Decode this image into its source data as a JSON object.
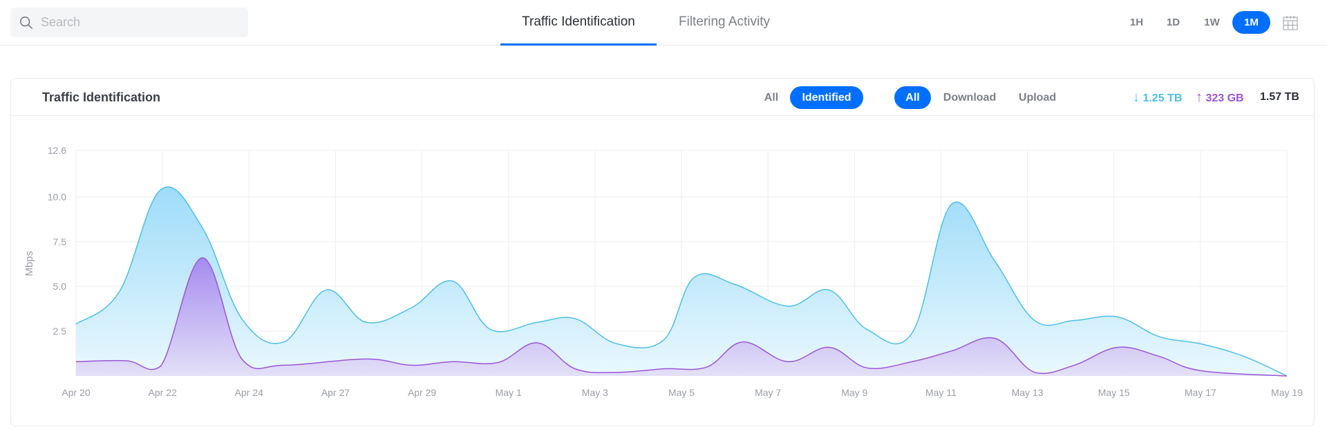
{
  "search": {
    "placeholder": "Search",
    "value": ""
  },
  "tabs": [
    {
      "label": "Traffic Identification",
      "active": true
    },
    {
      "label": "Filtering Activity",
      "active": false
    }
  ],
  "time_ranges": [
    {
      "label": "1H",
      "active": false
    },
    {
      "label": "1D",
      "active": false
    },
    {
      "label": "1W",
      "active": false
    },
    {
      "label": "1M",
      "active": true
    }
  ],
  "calendar_icon": "calendar-icon",
  "card": {
    "title": "Traffic Identification",
    "scope_filter": [
      {
        "label": "All",
        "active": false
      },
      {
        "label": "Identified",
        "active": true
      }
    ],
    "direction_filter": [
      {
        "label": "All",
        "active": true
      },
      {
        "label": "Download",
        "active": false
      },
      {
        "label": "Upload",
        "active": false
      }
    ],
    "stats": {
      "download": {
        "icon": "↓",
        "value": "1.25 TB"
      },
      "upload": {
        "icon": "↑",
        "value": "323 GB"
      },
      "total": "1.57 TB"
    }
  },
  "colors": {
    "accent": "#006fff",
    "download": "#4cbfe8",
    "upload": "#9a55d6"
  },
  "chart_data": {
    "type": "area",
    "ylabel": "Mbps",
    "xlabel": "",
    "ylim": [
      0,
      12.6
    ],
    "y_ticks": [
      "2.5",
      "5.0",
      "7.5",
      "10.0",
      "12.6"
    ],
    "x_ticks": [
      "Apr 20",
      "Apr 22",
      "Apr 24",
      "Apr 27",
      "Apr 29",
      "May 1",
      "May 3",
      "May 5",
      "May 7",
      "May 9",
      "May 11",
      "May 13",
      "May 15",
      "May 17",
      "May 19"
    ],
    "grid": true,
    "series": [
      {
        "key": "download",
        "points": [
          [
            "Apr 20 00:00",
            2.9
          ],
          [
            "Apr 21 00:00",
            4.7
          ],
          [
            "Apr 21 23:00",
            10.4
          ],
          [
            "Apr 22 22:00",
            8.3
          ],
          [
            "Apr 23 20:00",
            3.2
          ],
          [
            "Apr 25 05:00",
            1.9
          ],
          [
            "Apr 26 16:00",
            4.8
          ],
          [
            "Apr 27 17:00",
            3.0
          ],
          [
            "Apr 28 18:00",
            3.8
          ],
          [
            "Apr 29 17:00",
            5.3
          ],
          [
            "Apr 30 14:00",
            2.6
          ],
          [
            "May 1 16:00",
            3.0
          ],
          [
            "May 2 13:00",
            3.2
          ],
          [
            "May 3 12:00",
            1.8
          ],
          [
            "May 4 14:00",
            2.0
          ],
          [
            "May 5 07:00",
            5.5
          ],
          [
            "May 6 06:00",
            5.1
          ],
          [
            "May 7 11:00",
            3.9
          ],
          [
            "May 8 10:00",
            4.8
          ],
          [
            "May 9 07:00",
            2.6
          ],
          [
            "May 10 08:00",
            2.4
          ],
          [
            "May 11 06:00",
            9.6
          ],
          [
            "May 12 06:00",
            6.4
          ],
          [
            "May 13 04:00",
            3.1
          ],
          [
            "May 14 02:00",
            3.1
          ],
          [
            "May 15 02:00",
            3.3
          ],
          [
            "May 16 01:00",
            2.2
          ],
          [
            "May 17 00:00",
            1.8
          ],
          [
            "May 18 00:00",
            1.1
          ],
          [
            "May 19 00:00",
            0
          ]
        ]
      },
      {
        "key": "upload",
        "points": [
          [
            "Apr 20 00:00",
            0.8
          ],
          [
            "Apr 21 04:00",
            0.85
          ],
          [
            "Apr 21 23:00",
            0.55
          ],
          [
            "Apr 22 22:00",
            6.6
          ],
          [
            "Apr 23 20:00",
            0.95
          ],
          [
            "Apr 25 05:00",
            0.6
          ],
          [
            "Apr 27 17:00",
            0.95
          ],
          [
            "Apr 28 18:00",
            0.6
          ],
          [
            "Apr 29 17:00",
            0.8
          ],
          [
            "Apr 30 18:00",
            0.75
          ],
          [
            "May 1 16:00",
            1.85
          ],
          [
            "May 2 13:00",
            0.4
          ],
          [
            "May 3 12:00",
            0.2
          ],
          [
            "May 4 14:00",
            0.4
          ],
          [
            "May 5 14:00",
            0.5
          ],
          [
            "May 6 10:00",
            1.9
          ],
          [
            "May 7 11:00",
            0.8
          ],
          [
            "May 8 10:00",
            1.6
          ],
          [
            "May 9 07:00",
            0.45
          ],
          [
            "May 10 08:00",
            0.8
          ],
          [
            "May 11 06:00",
            1.4
          ],
          [
            "May 12 06:00",
            2.1
          ],
          [
            "May 13 04:00",
            0.2
          ],
          [
            "May 14 02:00",
            0.6
          ],
          [
            "May 15 02:00",
            1.6
          ],
          [
            "May 16 01:00",
            1.1
          ],
          [
            "May 17 00:00",
            0.3
          ],
          [
            "May 19 00:00",
            0
          ]
        ]
      }
    ]
  }
}
